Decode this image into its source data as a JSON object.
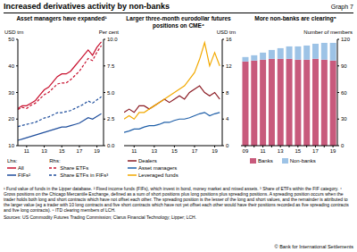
{
  "title": "Increased derivatives activity by non-banks",
  "graph_label": "Graph 7",
  "chart_data": [
    {
      "type": "line",
      "title": "Asset managers have expanded¹",
      "ylabel": "USD trn",
      "y2label": "Per cent",
      "legend_group_labels": {
        "y": "Lhs:",
        "y2": "Rhs:"
      },
      "grid": false,
      "x": [
        2010,
        2010.5,
        2011,
        2011.5,
        2012,
        2012.5,
        2013,
        2013.5,
        2014,
        2014.5,
        2015,
        2015.5,
        2016,
        2016.5,
        2017,
        2017.5,
        2018,
        2018.5,
        2019,
        2019.5
      ],
      "xlim": [
        2010,
        2019.75
      ],
      "xticks": [
        {
          "value": 2011,
          "label": "11"
        },
        {
          "value": 2013,
          "label": "13"
        },
        {
          "value": 2015,
          "label": "15"
        },
        {
          "value": 2017,
          "label": "17"
        },
        {
          "value": 2019,
          "label": "19"
        }
      ],
      "ylim": [
        10,
        50
      ],
      "yticks": [
        10,
        20,
        30,
        40,
        50
      ],
      "y2lim": [
        0,
        10
      ],
      "y2ticks": [
        {
          "value": 0,
          "label": "0.0"
        },
        2.5,
        {
          "value": 5,
          "label": "5.0"
        },
        7.5,
        {
          "value": 10,
          "label": "10.0"
        }
      ],
      "series": [
        {
          "name": "All",
          "color": "#c8102e",
          "line_style": "solid",
          "values": [
            24,
            25,
            25,
            26,
            27,
            29,
            31,
            32,
            34,
            36,
            37,
            37,
            38,
            40,
            42,
            44,
            46,
            44,
            47,
            49
          ]
        },
        {
          "name": "FIFs²",
          "color": "#1f4e9c",
          "line_style": "solid",
          "values": [
            12,
            12.5,
            13,
            13.5,
            14,
            14.5,
            15,
            15.5,
            16,
            16.5,
            17,
            17,
            17.5,
            18,
            18.5,
            19.5,
            20.5,
            20,
            21,
            22
          ]
        },
        {
          "name": "Share ETFs",
          "color": "#c8102e",
          "line_style": "dashed",
          "axis": "y2",
          "values": [
            3.4,
            3.6,
            3.5,
            3.8,
            4.0,
            4.4,
            4.8,
            5.0,
            5.4,
            5.8,
            5.9,
            5.9,
            6.2,
            6.6,
            7.0,
            7.6,
            8.2,
            8.0,
            8.8,
            9.4
          ]
        },
        {
          "name": "Share ETFs in FIFs³",
          "color": "#1f4e9c",
          "line_style": "dashed",
          "axis": "y2",
          "values": [
            1.8,
            1.9,
            2.0,
            2.1,
            2.2,
            2.4,
            2.6,
            2.7,
            2.9,
            3.1,
            3.1,
            3.2,
            3.3,
            3.5,
            3.7,
            3.9,
            4.2,
            4.0,
            4.3,
            4.6
          ]
        }
      ]
    },
    {
      "type": "line",
      "title": "Larger three-month eurodollar futures positions on CME⁴",
      "ylabel": "USD trn",
      "grid": false,
      "x": [
        2010,
        2010.5,
        2011,
        2011.5,
        2012,
        2012.5,
        2013,
        2013.5,
        2014,
        2014.5,
        2015,
        2015.5,
        2016,
        2016.5,
        2017,
        2017.5,
        2018,
        2018.5,
        2019,
        2019.5
      ],
      "xlim": [
        2010,
        2019.75
      ],
      "xticks": [
        {
          "value": 2011,
          "label": "11"
        },
        {
          "value": 2013,
          "label": "13"
        },
        {
          "value": 2015,
          "label": "15"
        },
        {
          "value": 2017,
          "label": "17"
        },
        {
          "value": 2019,
          "label": "19"
        }
      ],
      "ylim": [
        0,
        16
      ],
      "yticks": [
        0,
        4,
        8,
        12,
        16
      ],
      "series": [
        {
          "name": "Dealers",
          "color": "#8b1c24",
          "line_style": "solid",
          "values": [
            5,
            5.5,
            5,
            6,
            6,
            5.5,
            6,
            6.5,
            7,
            6.5,
            7,
            7.5,
            7,
            8,
            8.5,
            9,
            8,
            7.5,
            8,
            7
          ]
        },
        {
          "name": "Asset managers",
          "color": "#1f5fa8",
          "line_style": "solid",
          "values": [
            2,
            2.2,
            2.5,
            2.5,
            2.8,
            3,
            3,
            3.2,
            3.5,
            3.5,
            3.8,
            4,
            4,
            4.2,
            4.5,
            4.8,
            5,
            4.5,
            4.8,
            5
          ]
        },
        {
          "name": "Leveraged funds",
          "color": "#f2a900",
          "line_style": "solid",
          "values": [
            4,
            4.5,
            4,
            5,
            5,
            5.5,
            6,
            6.5,
            7,
            7.5,
            8,
            8.5,
            9,
            10,
            11,
            13,
            15.5,
            12,
            14,
            12
          ]
        }
      ]
    },
    {
      "type": "bar",
      "title": "More non-banks are clearing⁵",
      "ylabel": "Number of members",
      "stacked": true,
      "grid": false,
      "categories": [
        "09",
        null,
        "11",
        null,
        "13",
        null,
        "15",
        null,
        "17",
        null,
        "19"
      ],
      "ylim": [
        0,
        120
      ],
      "yticks": [
        0,
        30,
        60,
        90,
        120
      ],
      "series": [
        {
          "name": "Banks",
          "color": "#c85a7c",
          "values": [
            95,
            96,
            97,
            98,
            98,
            98,
            97,
            97,
            98,
            97,
            96
          ]
        },
        {
          "name": "Non-banks",
          "color": "#9dc3e6",
          "values": [
            5,
            6,
            8,
            10,
            12,
            14,
            15,
            16,
            17,
            19,
            20
          ]
        }
      ]
    }
  ],
  "notes": [
    "¹ Fund value of funds in the Lipper database.",
    "² Fixed income funds (FIFs), which invest in bond, money market and mixed assets.",
    "³ Share of ETFs within the FIF category.",
    "⁴ Gross positions on the Chicago Mercantile Exchange, defined as a sum of short positions plus long positions plus spreading positions. A spreading position occurs when the trader holds both long and short contracts which have not offset each other. The spreading position is the lesser of the long and short values, and the remainder is attributed to the larger value (eg a trader with 10 long contracts and five short contracts which have not yet offset each other would have their positions recorded as five spreading contracts and five long contracts).",
    "⁵ ITD clearing members of LCH."
  ],
  "sources": "Sources: US Commodity Futures Trading Commission; Clarus Financial Technology; Lipper; LCH.",
  "copyright": "© Bank for International Settlements"
}
